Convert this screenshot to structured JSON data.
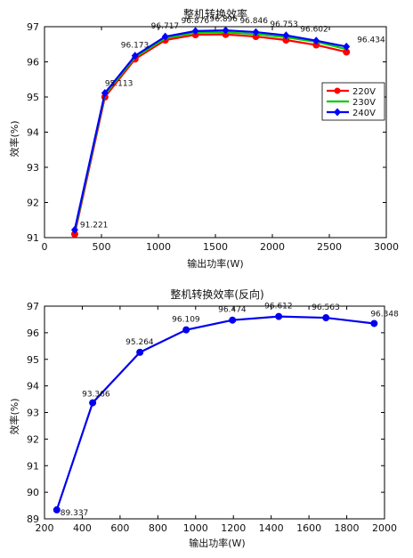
{
  "chart_data": [
    {
      "type": "line",
      "title": "整机转换效率",
      "xlabel": "输出功率(W)",
      "ylabel": "效率(%)",
      "xlim": [
        0,
        3000
      ],
      "ylim": [
        91,
        97
      ],
      "xticks": [
        "0",
        "500",
        "1000",
        "1500",
        "2000",
        "2500",
        "3000"
      ],
      "yticks": [
        "91",
        "92",
        "93",
        "94",
        "95",
        "96",
        "97"
      ],
      "grid": false,
      "legend_position": "right",
      "x": [
        265,
        530,
        795,
        1060,
        1325,
        1590,
        1855,
        2120,
        2385,
        2650
      ],
      "series": [
        {
          "name": "220V",
          "color": "#ff0000",
          "marker": "circle",
          "values": [
            91.1,
            95.0,
            96.08,
            96.62,
            96.77,
            96.78,
            96.72,
            96.62,
            96.48,
            96.28
          ]
        },
        {
          "name": "230V",
          "color": "#00cc00",
          "marker": "none",
          "values": [
            91.16,
            95.07,
            96.13,
            96.67,
            96.83,
            96.84,
            96.79,
            96.7,
            96.57,
            96.36
          ]
        },
        {
          "name": "240V",
          "color": "#0000ff",
          "marker": "diamond",
          "values": [
            91.221,
            95.113,
            96.173,
            96.717,
            96.876,
            96.896,
            96.846,
            96.753,
            96.602,
            96.434
          ]
        }
      ],
      "data_labels": [
        {
          "x": 265,
          "y": 91.221,
          "text": "91.221"
        },
        {
          "x": 530,
          "y": 95.113,
          "text": "95.113"
        },
        {
          "x": 795,
          "y": 96.173,
          "text": "96.173"
        },
        {
          "x": 1060,
          "y": 96.717,
          "text": "96.717"
        },
        {
          "x": 1325,
          "y": 96.876,
          "text": "96.876"
        },
        {
          "x": 1590,
          "y": 96.896,
          "text": "96.896"
        },
        {
          "x": 1855,
          "y": 96.846,
          "text": "96.846"
        },
        {
          "x": 2120,
          "y": 96.753,
          "text": "96.753"
        },
        {
          "x": 2385,
          "y": 96.602,
          "text": "96.602"
        },
        {
          "x": 2650,
          "y": 96.434,
          "text": "96.434"
        }
      ]
    },
    {
      "type": "line",
      "title": "整机转换效率(反向)",
      "xlabel": "输出功率(W)",
      "ylabel": "效率(%)",
      "xlim": [
        200,
        2000
      ],
      "ylim": [
        89,
        97
      ],
      "xticks": [
        "200",
        "400",
        "600",
        "800",
        "1000",
        "1200",
        "1400",
        "1600",
        "1800",
        "2000"
      ],
      "yticks": [
        "89",
        "90",
        "91",
        "92",
        "93",
        "94",
        "95",
        "96",
        "97"
      ],
      "grid": false,
      "x": [
        265,
        455,
        705,
        950,
        1195,
        1440,
        1690,
        1945
      ],
      "series": [
        {
          "color": "#0000ee",
          "marker": "circle",
          "values": [
            89.337,
            93.366,
            95.264,
            96.109,
            96.474,
            96.612,
            96.563,
            96.348
          ]
        }
      ],
      "data_labels": [
        {
          "x": 265,
          "y": 89.337,
          "text": "89.337"
        },
        {
          "x": 455,
          "y": 93.366,
          "text": "93.366"
        },
        {
          "x": 705,
          "y": 95.264,
          "text": "95.264"
        },
        {
          "x": 950,
          "y": 96.109,
          "text": "96.109"
        },
        {
          "x": 1195,
          "y": 96.474,
          "text": "96.474"
        },
        {
          "x": 1440,
          "y": 96.612,
          "text": "96.612"
        },
        {
          "x": 1690,
          "y": 96.563,
          "text": "96.563"
        },
        {
          "x": 1945,
          "y": 96.348,
          "text": "96.348"
        }
      ]
    }
  ]
}
